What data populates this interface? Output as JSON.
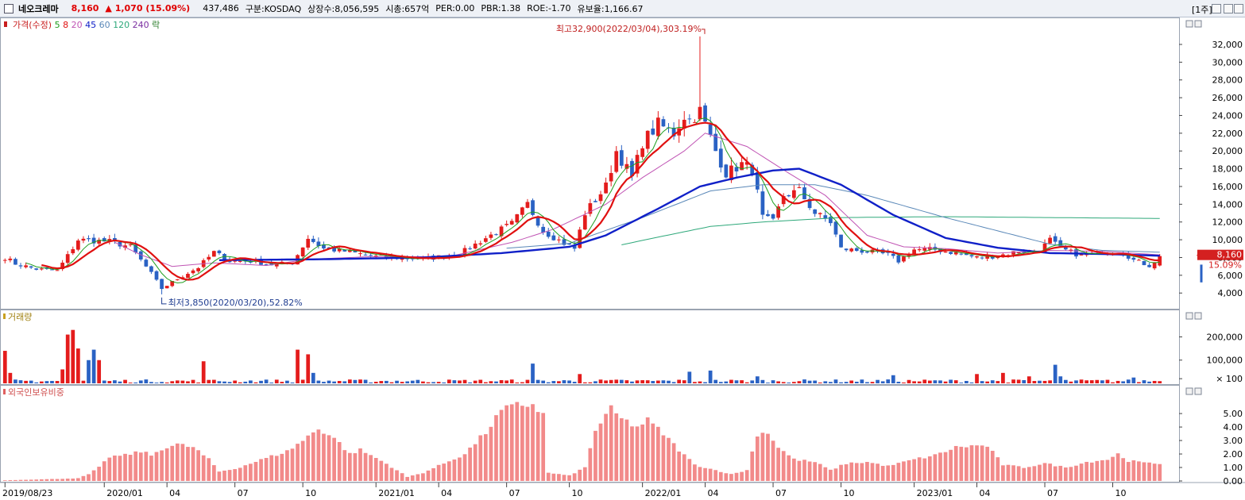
{
  "header": {
    "name": "네오크레마",
    "price": "8,160",
    "change": "▲ 1,070 (15.09%)",
    "volume": "437,486",
    "market": "구분:KOSDAQ",
    "shares": "상장수:8,056,595",
    "mcap": "시총:657억",
    "per": "PER:0.00",
    "pbr": "PBR:1.38",
    "roe": "ROE:-1.70",
    "turnover": "유보율:1,166.67",
    "period": "[1주]"
  },
  "colors": {
    "up": "#e41c1c",
    "down": "#2a62c4",
    "ma5": "#1e9e1e",
    "ma8": "#e01010",
    "ma20": "#c054b4",
    "ma45": "#1020c8",
    "ma60": "#5a88b8",
    "ma120": "#2ea87a",
    "foreign": "#f28a8a"
  },
  "chart_data": [
    {
      "type": "candlestick",
      "legend": [
        "가격(수정)",
        "5",
        "8",
        "20",
        "45",
        "60",
        "120",
        "240",
        "락"
      ],
      "yticks": [
        "32,000",
        "30,000",
        "28,000",
        "26,000",
        "24,000",
        "22,000",
        "20,000",
        "18,000",
        "16,000",
        "14,000",
        "12,000",
        "10,000",
        "8,000",
        "6,000",
        "4,000"
      ],
      "ylim": [
        2500,
        34500
      ],
      "xticks": [
        {
          "i": 0,
          "label": "2019/08/23"
        },
        {
          "i": 19,
          "label": "2020/01"
        },
        {
          "i": 31,
          "label": "04"
        },
        {
          "i": 44,
          "label": "07"
        },
        {
          "i": 57,
          "label": "10"
        },
        {
          "i": 71,
          "label": "2021/01"
        },
        {
          "i": 83,
          "label": "04"
        },
        {
          "i": 96,
          "label": "07"
        },
        {
          "i": 108,
          "label": "10"
        },
        {
          "i": 122,
          "label": "2022/01"
        },
        {
          "i": 134,
          "label": "04"
        },
        {
          "i": 147,
          "label": "07"
        },
        {
          "i": 160,
          "label": "10"
        },
        {
          "i": 174,
          "label": "2023/01"
        },
        {
          "i": 186,
          "label": "04"
        },
        {
          "i": 199,
          "label": "07"
        },
        {
          "i": 212,
          "label": "10"
        }
      ],
      "current_price": "8,160",
      "current_change": "15.09%",
      "max_annotation": "최고32,900(2022/03/04),303.19%",
      "min_annotation": "최저3,850(2020/03/20),52.82%",
      "anchors": [
        [
          0,
          8000
        ],
        [
          2,
          7300
        ],
        [
          6,
          6700
        ],
        [
          10,
          6500
        ],
        [
          12,
          8200
        ],
        [
          14,
          10000
        ],
        [
          17,
          9900
        ],
        [
          20,
          9800
        ],
        [
          24,
          9200
        ],
        [
          28,
          6200
        ],
        [
          30,
          4500
        ],
        [
          33,
          5600
        ],
        [
          37,
          6900
        ],
        [
          40,
          8600
        ],
        [
          43,
          7600
        ],
        [
          47,
          7600
        ],
        [
          51,
          7200
        ],
        [
          55,
          7400
        ],
        [
          58,
          10200
        ],
        [
          61,
          9000
        ],
        [
          65,
          8700
        ],
        [
          71,
          8100
        ],
        [
          77,
          7900
        ],
        [
          81,
          7900
        ],
        [
          87,
          8400
        ],
        [
          92,
          10200
        ],
        [
          97,
          11800
        ],
        [
          100,
          14000
        ],
        [
          103,
          11000
        ],
        [
          107,
          9600
        ],
        [
          109,
          9000
        ],
        [
          111,
          13000
        ],
        [
          113,
          14500
        ],
        [
          115,
          16000
        ],
        [
          117,
          20000
        ],
        [
          120,
          17000
        ],
        [
          122,
          21000
        ],
        [
          125,
          23000
        ],
        [
          128,
          22000
        ],
        [
          130,
          24000
        ],
        [
          131,
          23500
        ],
        [
          133,
          24500
        ],
        [
          136,
          20000
        ],
        [
          138,
          17500
        ],
        [
          141,
          18500
        ],
        [
          143,
          18000
        ],
        [
          145,
          12500
        ],
        [
          147,
          12000
        ],
        [
          149,
          15000
        ],
        [
          152,
          15500
        ],
        [
          155,
          13000
        ],
        [
          158,
          12000
        ],
        [
          160,
          9000
        ],
        [
          163,
          8800
        ],
        [
          166,
          8600
        ],
        [
          169,
          8300
        ],
        [
          171,
          7600
        ],
        [
          174,
          8900
        ],
        [
          178,
          8900
        ],
        [
          182,
          8500
        ],
        [
          186,
          8000
        ],
        [
          190,
          8200
        ],
        [
          194,
          8700
        ],
        [
          198,
          8800
        ],
        [
          200,
          10000
        ],
        [
          202,
          9000
        ],
        [
          206,
          8200
        ],
        [
          210,
          8600
        ],
        [
          214,
          8600
        ],
        [
          216,
          7700
        ],
        [
          219,
          7100
        ],
        [
          221,
          8160
        ]
      ],
      "ma45_anchors": [
        [
          0,
          null
        ],
        [
          40,
          7700
        ],
        [
          60,
          7800
        ],
        [
          80,
          8000
        ],
        [
          95,
          8500
        ],
        [
          108,
          9200
        ],
        [
          115,
          10500
        ],
        [
          125,
          13500
        ],
        [
          133,
          16000
        ],
        [
          140,
          17000
        ],
        [
          147,
          17800
        ],
        [
          152,
          18000
        ],
        [
          160,
          16200
        ],
        [
          170,
          12800
        ],
        [
          180,
          10200
        ],
        [
          190,
          9100
        ],
        [
          200,
          8500
        ],
        [
          210,
          8400
        ],
        [
          221,
          8200
        ]
      ],
      "ma20_anchors": [
        [
          0,
          null
        ],
        [
          20,
          10000
        ],
        [
          26,
          8300
        ],
        [
          32,
          7000
        ],
        [
          40,
          7400
        ],
        [
          50,
          7100
        ],
        [
          58,
          7800
        ],
        [
          70,
          8100
        ],
        [
          85,
          8100
        ],
        [
          97,
          9700
        ],
        [
          105,
          11200
        ],
        [
          115,
          14000
        ],
        [
          122,
          17000
        ],
        [
          130,
          20000
        ],
        [
          134,
          22000
        ],
        [
          142,
          20500
        ],
        [
          150,
          17500
        ],
        [
          157,
          15000
        ],
        [
          165,
          10500
        ],
        [
          172,
          9200
        ],
        [
          180,
          9000
        ],
        [
          190,
          8500
        ],
        [
          200,
          8800
        ],
        [
          210,
          8700
        ],
        [
          221,
          8300
        ]
      ],
      "ma60_anchors": [
        [
          0,
          null
        ],
        [
          95,
          9000
        ],
        [
          108,
          9600
        ],
        [
          122,
          12500
        ],
        [
          135,
          15500
        ],
        [
          145,
          16200
        ],
        [
          155,
          16200
        ],
        [
          165,
          15000
        ],
        [
          180,
          12500
        ],
        [
          190,
          11000
        ],
        [
          200,
          9500
        ],
        [
          210,
          8800
        ],
        [
          221,
          8600
        ]
      ],
      "ma120_anchors": [
        [
          0,
          null
        ],
        [
          117,
          9300
        ],
        [
          125,
          10300
        ],
        [
          135,
          11500
        ],
        [
          145,
          12000
        ],
        [
          160,
          12500
        ],
        [
          180,
          12600
        ],
        [
          200,
          12500
        ],
        [
          221,
          12400
        ]
      ]
    },
    {
      "type": "bar",
      "legend": "거래량",
      "yticks": [
        "200,000",
        "100,000",
        "× 100"
      ],
      "ylim": [
        0,
        270000
      ]
    },
    {
      "type": "bar",
      "legend": "외국인보유비중",
      "yticks": [
        "5.00",
        "4.00",
        "3.00",
        "2.00",
        "1.00",
        "0.00"
      ],
      "ylim": [
        0,
        6.3
      ],
      "anchors": [
        [
          0,
          0.05
        ],
        [
          5,
          0.1
        ],
        [
          10,
          0.15
        ],
        [
          14,
          0.2
        ],
        [
          16,
          0.5
        ],
        [
          18,
          1.0
        ],
        [
          20,
          1.8
        ],
        [
          23,
          1.9
        ],
        [
          26,
          2.2
        ],
        [
          28,
          1.9
        ],
        [
          30,
          2.4
        ],
        [
          33,
          2.7
        ],
        [
          36,
          2.5
        ],
        [
          39,
          1.6
        ],
        [
          41,
          0.7
        ],
        [
          44,
          0.9
        ],
        [
          47,
          1.3
        ],
        [
          50,
          1.7
        ],
        [
          54,
          2.2
        ],
        [
          57,
          3.0
        ],
        [
          60,
          3.9
        ],
        [
          63,
          3.2
        ],
        [
          66,
          2.0
        ],
        [
          68,
          2.3
        ],
        [
          72,
          1.5
        ],
        [
          75,
          0.8
        ],
        [
          77,
          0.3
        ],
        [
          80,
          0.6
        ],
        [
          84,
          1.3
        ],
        [
          88,
          2.0
        ],
        [
          92,
          3.6
        ],
        [
          95,
          5.2
        ],
        [
          98,
          5.6
        ],
        [
          101,
          5.7
        ],
        [
          103,
          4.9
        ],
        [
          104,
          0.6
        ],
        [
          108,
          0.4
        ],
        [
          111,
          1.0
        ],
        [
          113,
          3.8
        ],
        [
          116,
          5.3
        ],
        [
          118,
          4.6
        ],
        [
          121,
          4.0
        ],
        [
          123,
          4.5
        ],
        [
          126,
          3.5
        ],
        [
          129,
          2.3
        ],
        [
          132,
          1.2
        ],
        [
          135,
          0.9
        ],
        [
          139,
          0.5
        ],
        [
          142,
          0.8
        ],
        [
          144,
          3.5
        ],
        [
          146,
          3.6
        ],
        [
          148,
          2.5
        ],
        [
          151,
          1.6
        ],
        [
          155,
          1.4
        ],
        [
          158,
          0.8
        ],
        [
          161,
          1.3
        ],
        [
          165,
          1.4
        ],
        [
          169,
          1.1
        ],
        [
          174,
          1.6
        ],
        [
          178,
          1.9
        ],
        [
          182,
          2.5
        ],
        [
          185,
          2.6
        ],
        [
          188,
          2.6
        ],
        [
          191,
          1.2
        ],
        [
          195,
          1.0
        ],
        [
          199,
          1.3
        ],
        [
          203,
          1.0
        ],
        [
          207,
          1.4
        ],
        [
          211,
          1.6
        ],
        [
          213,
          2.0
        ],
        [
          215,
          1.5
        ],
        [
          219,
          1.3
        ],
        [
          221,
          1.3
        ]
      ]
    }
  ]
}
